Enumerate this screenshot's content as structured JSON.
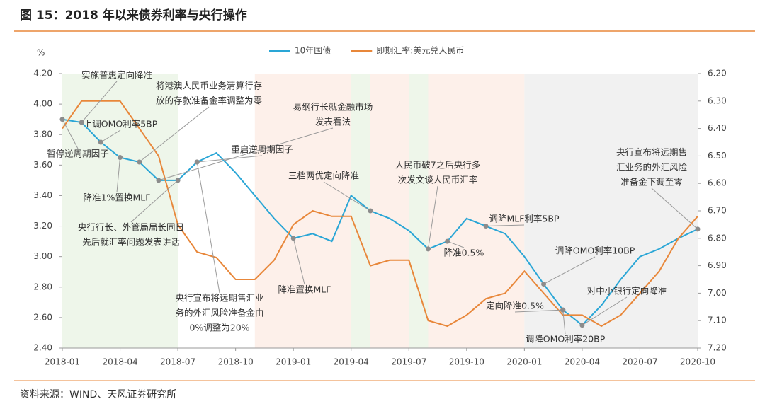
{
  "chart_data": {
    "type": "line",
    "title": "图 15：2018 年以来债券利率与央行操作",
    "source": "资料来源：WIND、天风证券研究所",
    "y_unit": "%",
    "x": [
      "2018-01",
      "2018-02",
      "2018-03",
      "2018-04",
      "2018-05",
      "2018-06",
      "2018-07",
      "2018-08",
      "2018-09",
      "2018-10",
      "2018-11",
      "2018-12",
      "2019-01",
      "2019-02",
      "2019-03",
      "2019-04",
      "2019-05",
      "2019-06",
      "2019-07",
      "2019-08",
      "2019-09",
      "2019-10",
      "2019-11",
      "2019-12",
      "2020-01",
      "2020-02",
      "2020-03",
      "2020-04",
      "2020-05",
      "2020-06",
      "2020-07",
      "2020-08",
      "2020-09",
      "2020-10"
    ],
    "xticks": [
      "2018-01",
      "2018-04",
      "2018-07",
      "2018-10",
      "2019-01",
      "2019-04",
      "2019-07",
      "2019-10",
      "2020-01",
      "2020-04",
      "2020-07",
      "2020-10"
    ],
    "series": [
      {
        "name": "10年国债",
        "color": "#2aa6d6",
        "values": [
          3.9,
          3.88,
          3.75,
          3.65,
          3.62,
          3.5,
          3.5,
          3.62,
          3.68,
          3.55,
          3.4,
          3.25,
          3.12,
          3.15,
          3.1,
          3.4,
          3.3,
          3.25,
          3.17,
          3.05,
          3.1,
          3.25,
          3.2,
          3.15,
          3.0,
          2.82,
          2.65,
          2.55,
          2.68,
          2.85,
          3.0,
          3.05,
          3.12,
          3.18
        ]
      },
      {
        "name": "即期汇率:美元兑人民币",
        "color": "#e8873a",
        "axis": "y2",
        "values": [
          6.4,
          6.3,
          6.3,
          6.3,
          6.4,
          6.5,
          6.75,
          6.85,
          6.87,
          6.95,
          6.95,
          6.88,
          6.75,
          6.7,
          6.72,
          6.72,
          6.9,
          6.88,
          6.88,
          7.1,
          7.12,
          7.08,
          7.02,
          7.0,
          6.92,
          7.0,
          7.08,
          7.08,
          7.12,
          7.08,
          7.0,
          6.92,
          6.8,
          6.72
        ]
      }
    ],
    "ylim": [
      2.4,
      4.2
    ],
    "yticks": [
      {
        "value": 2.4,
        "label": "2.40"
      },
      {
        "value": 2.6,
        "label": "2.60"
      },
      {
        "value": 2.8,
        "label": "2.80"
      },
      {
        "value": 3.0,
        "label": "3.00"
      },
      {
        "value": 3.2,
        "label": "3.20"
      },
      {
        "value": 3.4,
        "label": "3.40"
      },
      {
        "value": 3.6,
        "label": "3.60"
      },
      {
        "value": 3.8,
        "label": "3.80"
      },
      {
        "value": 4.0,
        "label": "4.00"
      },
      {
        "value": 4.2,
        "label": "4.20"
      }
    ],
    "y2lim": [
      7.2,
      6.2
    ],
    "y2ticks": [
      {
        "value": 6.2,
        "label": "6.20"
      },
      {
        "value": 6.3,
        "label": "6.30"
      },
      {
        "value": 6.4,
        "label": "6.40"
      },
      {
        "value": 6.5,
        "label": "6.50"
      },
      {
        "value": 6.6,
        "label": "6.60"
      },
      {
        "value": 6.7,
        "label": "6.70"
      },
      {
        "value": 6.8,
        "label": "6.80"
      },
      {
        "value": 6.9,
        "label": "6.90"
      },
      {
        "value": 7.0,
        "label": "7.00"
      },
      {
        "value": 7.1,
        "label": "7.10"
      },
      {
        "value": 7.2,
        "label": "7.20"
      }
    ],
    "shaded_periods": [
      {
        "start": "2018-01",
        "end": "2018-07",
        "color": "#eef6ea"
      },
      {
        "start": "2018-11",
        "end": "2019-04",
        "color": "#fdf0ea"
      },
      {
        "start": "2019-04",
        "end": "2019-05",
        "color": "#eef6ea"
      },
      {
        "start": "2019-05",
        "end": "2019-07",
        "color": "#fdf0ea"
      },
      {
        "start": "2019-07",
        "end": "2019-08",
        "color": "#eef6ea"
      },
      {
        "start": "2019-08",
        "end": "2020-01",
        "color": "#fdf0ea"
      },
      {
        "start": "2020-01",
        "end": "2020-10",
        "color": "#f1f1f1"
      }
    ],
    "annotations": [
      {
        "x": "2018-02",
        "lines": [
          "实施普惠定向降准"
        ]
      },
      {
        "x": "2018-05",
        "lines": [
          "将港澳人民币业务清算行存",
          "放的存款准备金率调整为零"
        ]
      },
      {
        "x": "2018-03",
        "lines": [
          "上调OMO利率5BP"
        ]
      },
      {
        "x": "2018-01",
        "lines": [
          "暂停逆周期因子"
        ]
      },
      {
        "x": "2018-06",
        "lines": [
          "易纲行长就金融市场",
          "发表看法"
        ]
      },
      {
        "x": "2018-08",
        "lines": [
          "重启逆周期因子"
        ]
      },
      {
        "x": "2018-04",
        "lines": [
          "降准1%置换MLF"
        ]
      },
      {
        "x": "2018-07",
        "lines": [
          "央行行长、外管局局长同日",
          "先后就汇率问题发表讲话"
        ]
      },
      {
        "x": "2018-08",
        "lines": [
          "央行宣布将远期售汇业",
          "务的外汇风险准备金由",
          "0%调整为20%"
        ]
      },
      {
        "x": "2019-05",
        "lines": [
          "三档两优定向降准"
        ]
      },
      {
        "x": "2019-01",
        "lines": [
          "降准置换MLF"
        ]
      },
      {
        "x": "2019-08",
        "lines": [
          "人民币破7之后央行多",
          "次发文谈人民币汇率"
        ]
      },
      {
        "x": "2019-09",
        "lines": [
          "降准0.5%"
        ]
      },
      {
        "x": "2019-11",
        "lines": [
          "调降MLF利率5BP"
        ]
      },
      {
        "x": "2020-02",
        "lines": [
          "调降OMO利率10BP"
        ]
      },
      {
        "x": "2020-04",
        "lines": [
          "对中小银行定向降准"
        ]
      },
      {
        "x": "2020-03",
        "lines": [
          "定向降准0.5%"
        ]
      },
      {
        "x": "2020-03",
        "lines": [
          "调降OMO利率20BP"
        ]
      },
      {
        "x": "2020-10",
        "lines": [
          "央行宣布将远期售",
          "汇业务的外汇风险",
          "准备金下调至零"
        ]
      }
    ]
  }
}
